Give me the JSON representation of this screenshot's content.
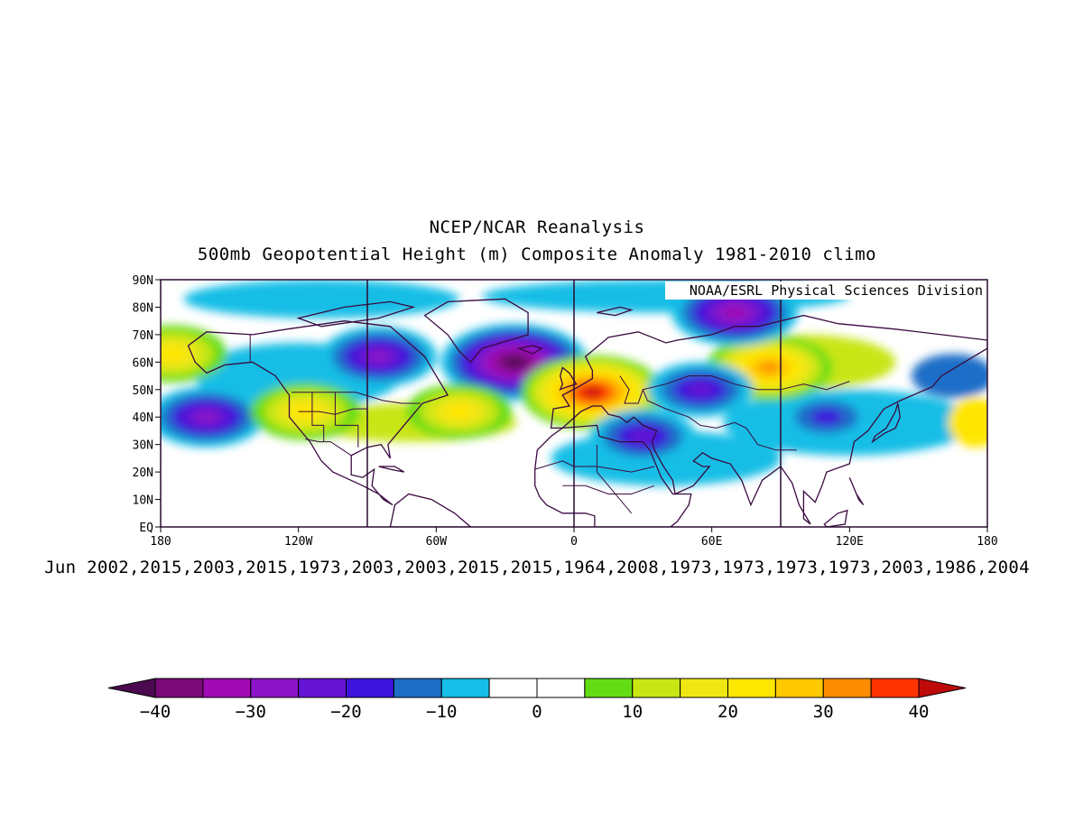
{
  "title": {
    "line1": "NCEP/NCAR Reanalysis",
    "line2": "500mb Geopotential Height (m) Composite Anomaly 1981-2010 climo"
  },
  "credit": "NOAA/ESRL Physical Sciences Division",
  "subtitle": "Jun 2002,2015,2003,2015,1973,2003,2003,2015,2015,1964,2008,1973,1973,1973,1973,2003,1986,2004",
  "map": {
    "lon_range": [
      -180,
      180
    ],
    "lat_range": [
      0,
      90
    ],
    "lon_ticks": [
      {
        "lon": -180,
        "label": "180"
      },
      {
        "lon": -120,
        "label": "120W"
      },
      {
        "lon": -60,
        "label": "60W"
      },
      {
        "lon": 0,
        "label": "0"
      },
      {
        "lon": 60,
        "label": "60E"
      },
      {
        "lon": 120,
        "label": "120E"
      },
      {
        "lon": 180,
        "label": "180"
      }
    ],
    "lat_ticks": [
      {
        "lat": 0,
        "label": "EQ"
      },
      {
        "lat": 10,
        "label": "10N"
      },
      {
        "lat": 20,
        "label": "20N"
      },
      {
        "lat": 30,
        "label": "30N"
      },
      {
        "lat": 40,
        "label": "40N"
      },
      {
        "lat": 50,
        "label": "50N"
      },
      {
        "lat": 60,
        "label": "60N"
      },
      {
        "lat": 70,
        "label": "70N"
      },
      {
        "lat": 80,
        "label": "80N"
      },
      {
        "lat": 90,
        "label": "90N"
      }
    ],
    "meridian_lines": [
      -90,
      0,
      90
    ],
    "anomaly_centers": [
      {
        "name": "north-atlantic-low",
        "lon": -26,
        "lat": 60,
        "value": -40
      },
      {
        "name": "europe-high",
        "lon": 8,
        "lat": 49,
        "value": 38
      },
      {
        "name": "siberia-high",
        "lon": 85,
        "lat": 58,
        "value": 30
      },
      {
        "name": "arctic-low",
        "lon": 70,
        "lat": 78,
        "value": -30
      },
      {
        "name": "hudson-bay-low",
        "lon": -85,
        "lat": 62,
        "value": -25
      },
      {
        "name": "north-pacific-low",
        "lon": -160,
        "lat": 40,
        "value": -25
      },
      {
        "name": "western-us-high",
        "lon": -117,
        "lat": 42,
        "value": 22
      },
      {
        "name": "caspian-low",
        "lon": 55,
        "lat": 50,
        "value": -20
      },
      {
        "name": "middle-east-low",
        "lon": 30,
        "lat": 33,
        "value": -20
      },
      {
        "name": "atlantic-ridge",
        "lon": -50,
        "lat": 42,
        "value": 20
      },
      {
        "name": "bering-high",
        "lon": -175,
        "lat": 63,
        "value": 22
      },
      {
        "name": "east-asia-low",
        "lon": 110,
        "lat": 40,
        "value": -15
      }
    ]
  },
  "colorbar": {
    "levels": [
      -40,
      -35,
      -30,
      -25,
      -20,
      -15,
      -10,
      -5,
      0,
      5,
      10,
      15,
      20,
      25,
      30,
      35,
      40
    ],
    "colors": [
      "#4b0a50",
      "#7a0a78",
      "#a00ab4",
      "#8c14c8",
      "#6414d2",
      "#3c14dc",
      "#1e6ec8",
      "#14bee6",
      "#ffffff",
      "#ffffff",
      "#64dc14",
      "#c8e614",
      "#f0e614",
      "#ffe600",
      "#ffc800",
      "#ff8c00",
      "#ff3200",
      "#be0a0a"
    ],
    "labels": [
      {
        "value": -40,
        "text": "-40"
      },
      {
        "value": -30,
        "text": "-30"
      },
      {
        "value": -20,
        "text": "-20"
      },
      {
        "value": -10,
        "text": "-10"
      },
      {
        "value": 0,
        "text": "0"
      },
      {
        "value": 10,
        "text": "10"
      },
      {
        "value": 20,
        "text": "20"
      },
      {
        "value": 30,
        "text": "30"
      },
      {
        "value": 40,
        "text": "40"
      }
    ]
  }
}
